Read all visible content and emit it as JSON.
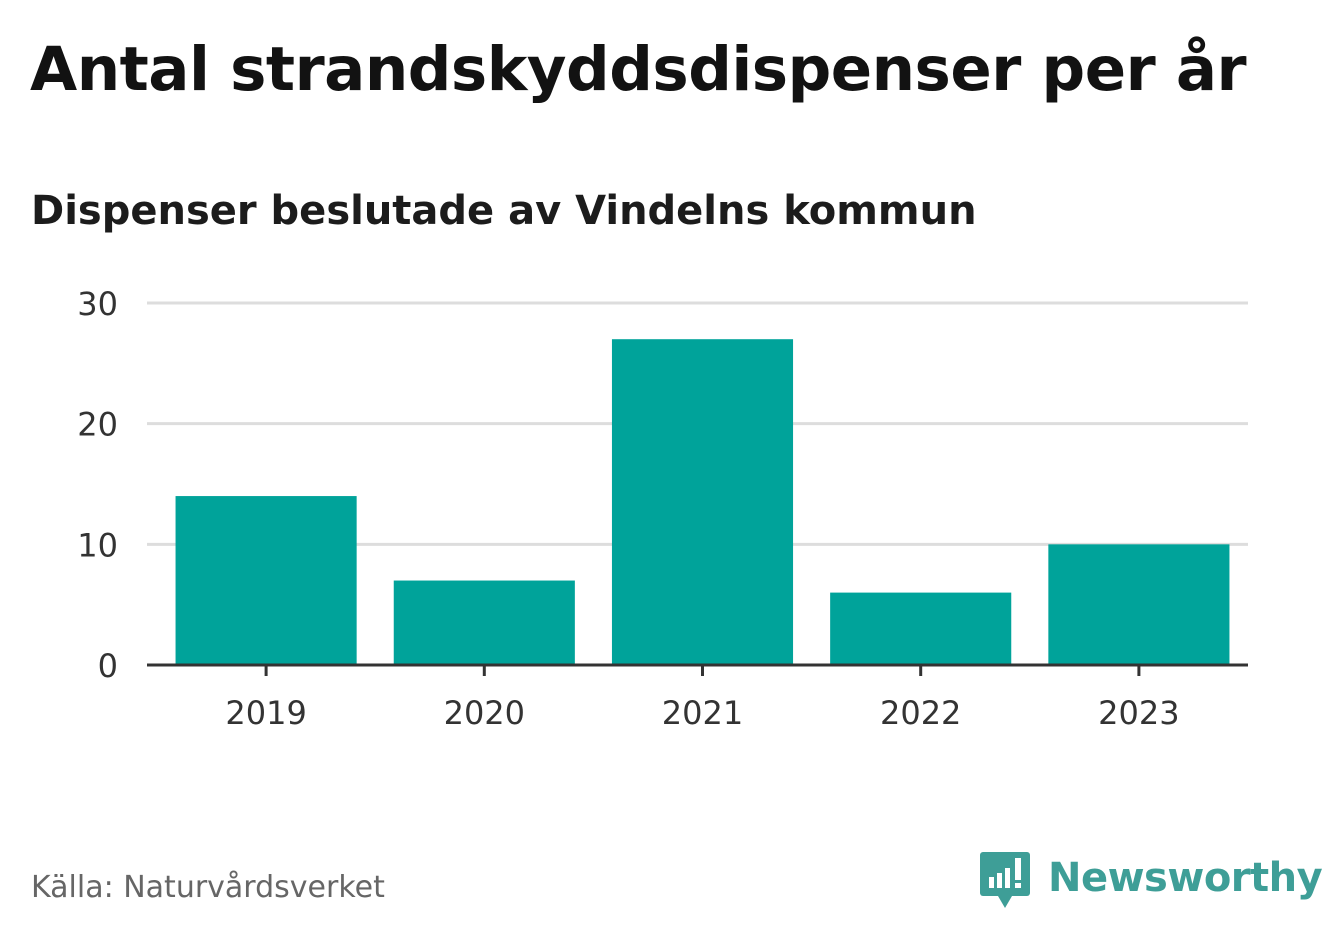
{
  "chart_data": {
    "type": "bar",
    "title": "Antal strandskyddsdispenser per år",
    "subtitle": "Dispenser beslutade av Vindelns kommun",
    "categories": [
      "2019",
      "2020",
      "2021",
      "2022",
      "2023"
    ],
    "series": [
      {
        "name": "Dispenser",
        "values": [
          14,
          7,
          27,
          6,
          10
        ]
      }
    ],
    "xlabel": "",
    "ylabel": "",
    "ylim": [
      0,
      30
    ],
    "yticks": [
      "0",
      "10",
      "20",
      "30"
    ],
    "grid": true,
    "legend": "none",
    "bar_color": "#00a39a",
    "grid_color": "#dddddd",
    "axis_color": "#333333"
  },
  "footer": {
    "source": "Källa: Naturvårdsverket",
    "brand": "Newsworthy",
    "brand_icon": "newsworthy-logo-icon",
    "brand_color": "#3e9e97"
  }
}
